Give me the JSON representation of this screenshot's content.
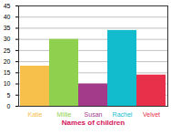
{
  "chart_data": {
    "type": "bar",
    "x_label": "Names of children",
    "categories": [
      "Katie",
      "Millie",
      "Susan",
      "Rachel",
      "Velvet"
    ],
    "values": [
      18,
      30,
      10,
      34,
      14
    ],
    "colors": [
      "#f7c04a",
      "#8fd14f",
      "#a33a8a",
      "#13bccc",
      "#e8304a"
    ],
    "ylim": [
      0,
      45
    ],
    "yticks": [
      0,
      5,
      10,
      15,
      20,
      25,
      30,
      35,
      40,
      45
    ],
    "grid": true
  }
}
